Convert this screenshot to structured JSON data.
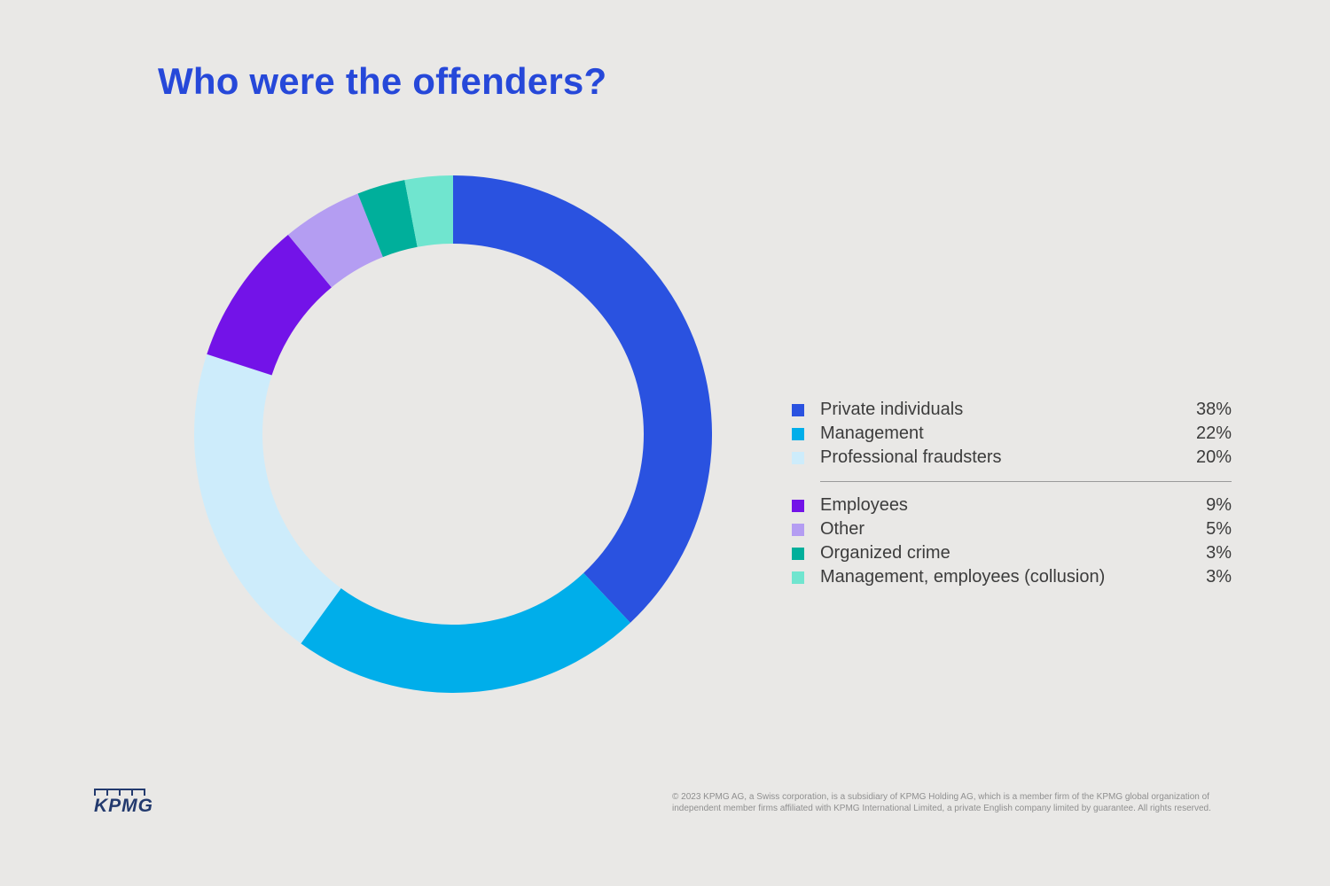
{
  "title": "Who were the offenders?",
  "colors": {
    "background": "#e9e8e6",
    "title": "#2648d9",
    "legend_text": "#3c3c3c",
    "divider": "#9a9a9a",
    "logo": "#233a6e",
    "copyright_text": "#8f8f8f"
  },
  "chart_data": {
    "type": "pie",
    "subtype": "donut",
    "title": "Who were the offenders?",
    "legend_position": "right",
    "start_angle_deg": 0,
    "direction": "clockwise",
    "outer_radius_px": 292,
    "inner_radius_px": 215,
    "items": [
      {
        "label": "Private individuals",
        "value": 38,
        "pct_label": "38%",
        "color": "#2a52e0"
      },
      {
        "label": "Management",
        "value": 22,
        "pct_label": "22%",
        "color": "#00aeea"
      },
      {
        "label": "Professional fraudsters",
        "value": 20,
        "pct_label": "20%",
        "color": "#cdecfb"
      },
      {
        "label": "Employees",
        "value": 9,
        "pct_label": "9%",
        "color": "#7313e8"
      },
      {
        "label": "Other",
        "value": 5,
        "pct_label": "5%",
        "color": "#b49df2"
      },
      {
        "label": "Organized crime",
        "value": 3,
        "pct_label": "3%",
        "color": "#00af9b"
      },
      {
        "label": "Management, employees (collusion)",
        "value": 3,
        "pct_label": "3%",
        "color": "#70e5cf"
      }
    ],
    "legend_divider_after_index": 2
  },
  "footer": {
    "logo_text": "KPMG",
    "copyright": "© 2023 KPMG AG, a Swiss corporation, is a subsidiary of KPMG Holding AG, which is a member firm of the KPMG global organization of independent member firms affiliated with KPMG International Limited, a private English company limited by guarantee. All rights reserved."
  }
}
